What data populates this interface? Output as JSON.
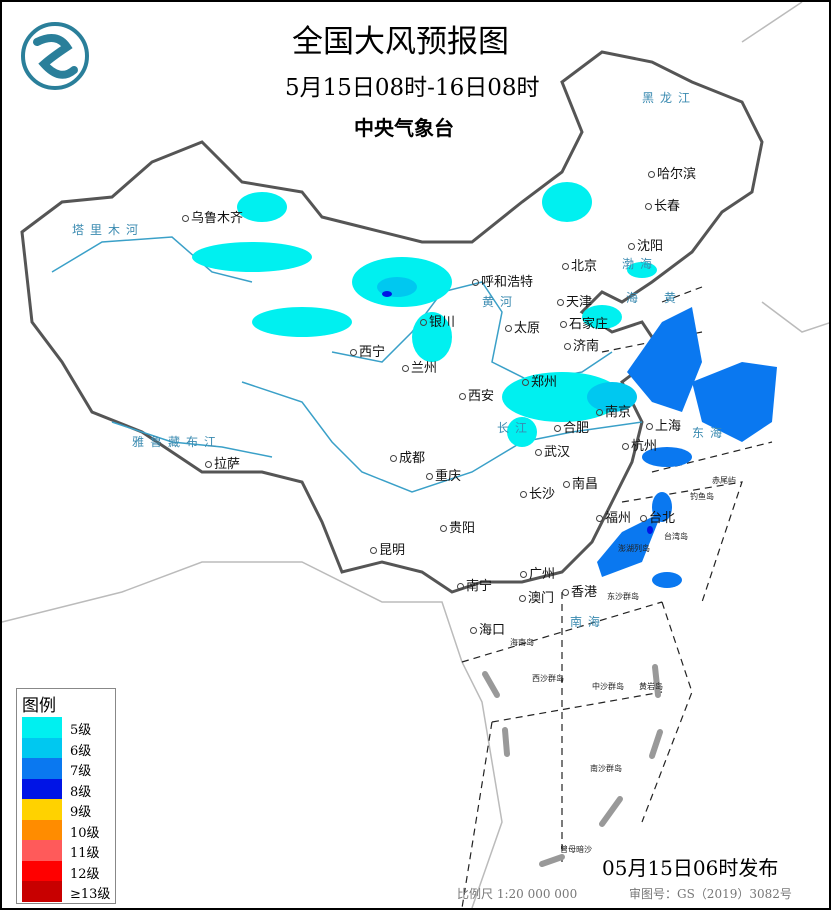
{
  "header": {
    "title": "全国大风预报图",
    "period": "5月15日08时-16日08时",
    "issuer": "中央气象台",
    "logo": "cma-logo"
  },
  "legend": {
    "title": "图例",
    "items": [
      {
        "label": "5级",
        "color": "#00f0f0"
      },
      {
        "label": "6级",
        "color": "#00c8f0"
      },
      {
        "label": "7级",
        "color": "#0a78f0"
      },
      {
        "label": "8级",
        "color": "#0014e6"
      },
      {
        "label": "9级",
        "color": "#ffd200"
      },
      {
        "label": "10级",
        "color": "#ff8c00"
      },
      {
        "label": "11级",
        "color": "#ff5a5a"
      },
      {
        "label": "12级",
        "color": "#ff0000"
      },
      {
        "label": "≥13级",
        "color": "#c80000"
      }
    ]
  },
  "cities": [
    "乌鲁木齐",
    "呼和浩特",
    "北京",
    "天津",
    "石家庄",
    "太原",
    "济南",
    "银川",
    "西宁",
    "兰州",
    "郑州",
    "西安",
    "南京",
    "合肥",
    "上海",
    "杭州",
    "武汉",
    "成都",
    "重庆",
    "拉萨",
    "长沙",
    "南昌",
    "福州",
    "台北",
    "贵阳",
    "昆明",
    "南宁",
    "广州",
    "香港",
    "澳门",
    "海口",
    "哈尔滨",
    "长春",
    "沈阳"
  ],
  "islands": [
    "海南岛",
    "台湾岛",
    "澎湖列岛",
    "赤尾屿",
    "钓鱼岛",
    "东沙群岛",
    "西沙群岛",
    "中沙群岛",
    "黄岩岛",
    "南沙群岛",
    "曾母暗沙"
  ],
  "water_labels": [
    "塔里木河",
    "雅鲁藏布江",
    "黄河",
    "长江",
    "渤海",
    "黄",
    "海",
    "东海",
    "南海",
    "黑龙江"
  ],
  "footer": {
    "release": "05月15日06时发布",
    "scale": "比例尺 1:20 000 000",
    "review": "审图号：GS（2019）3082号"
  }
}
